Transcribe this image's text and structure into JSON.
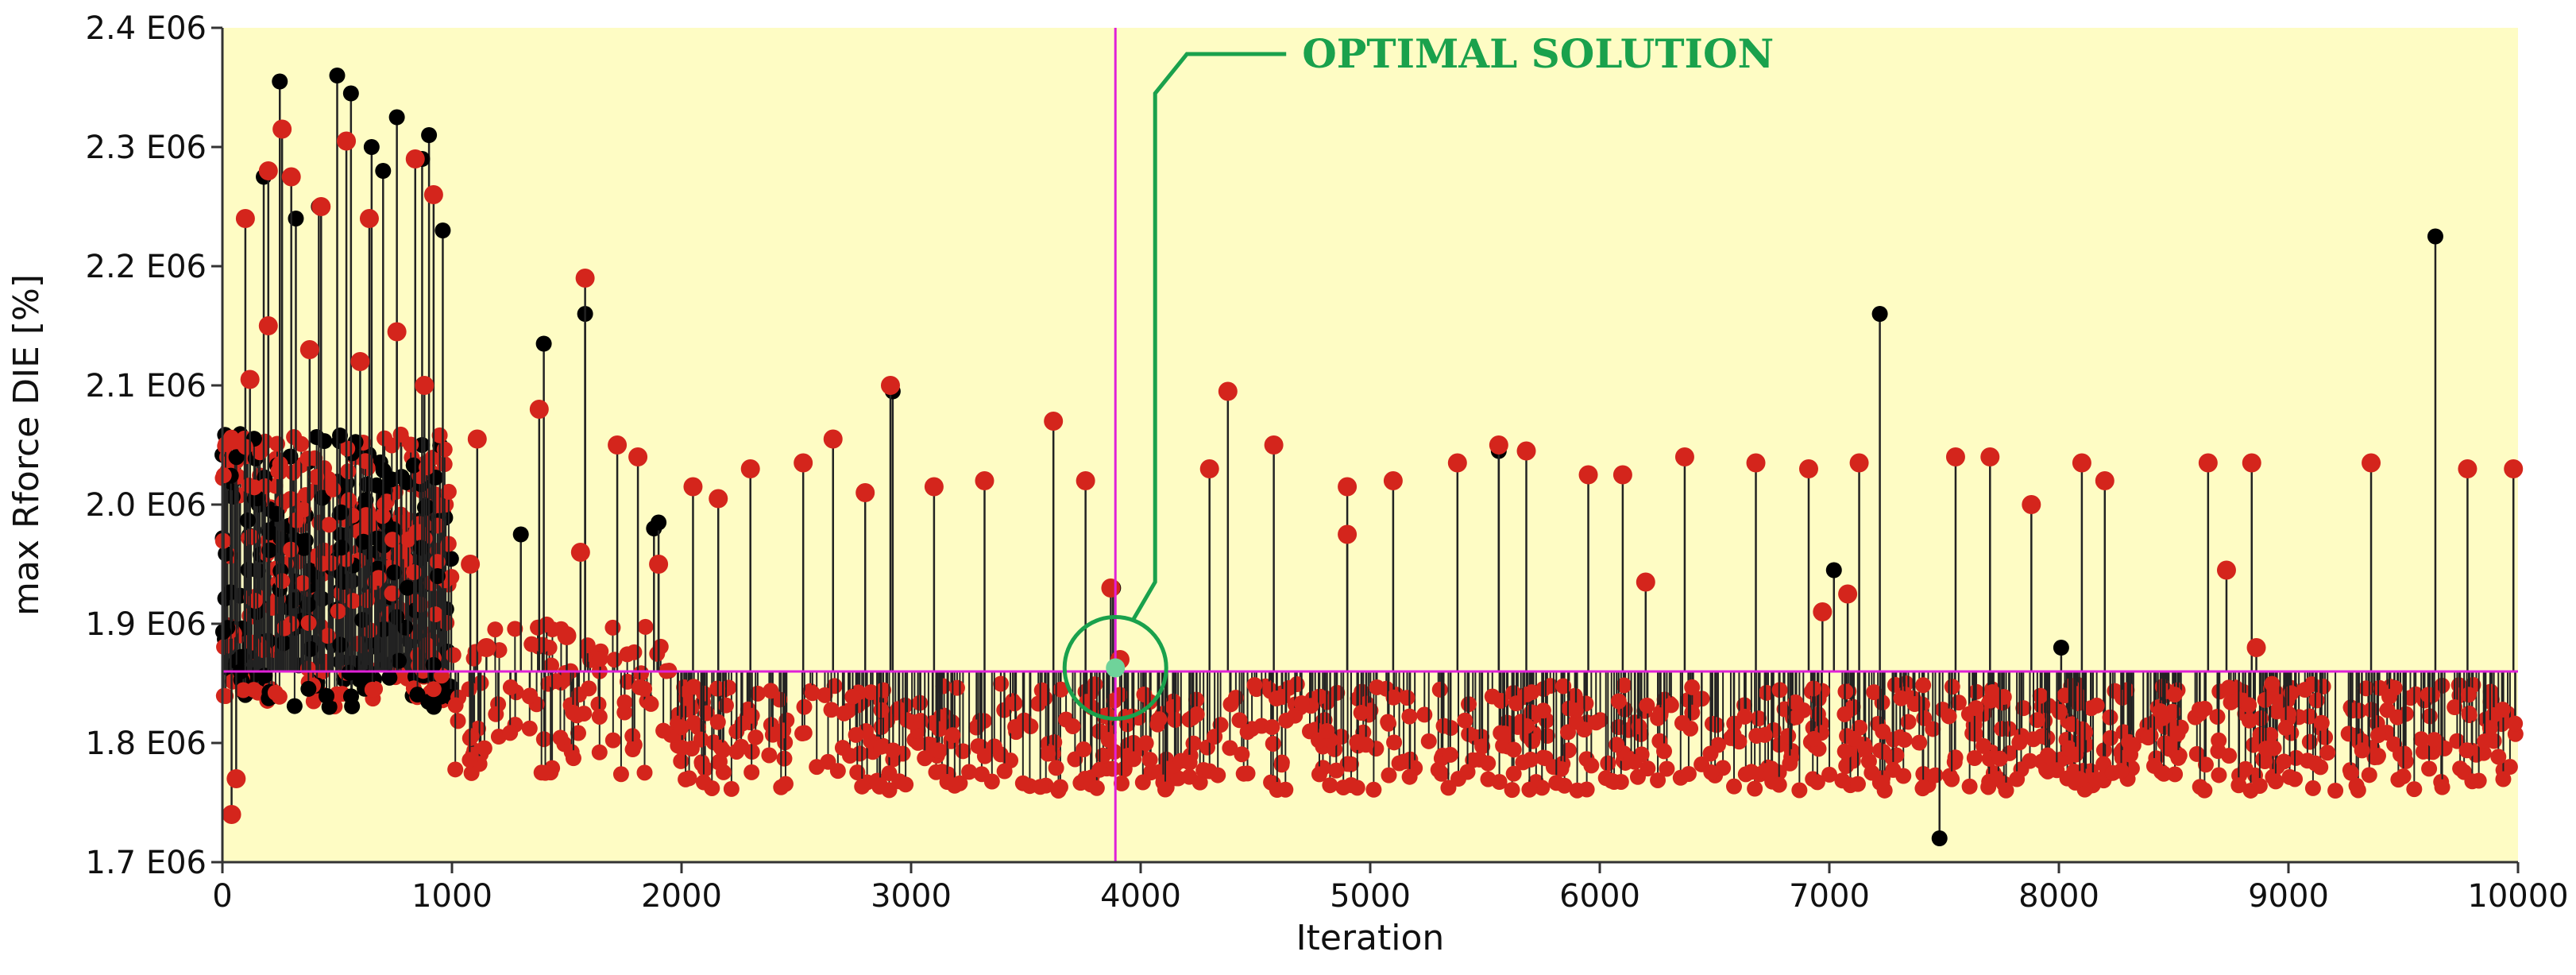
{
  "chart_data": {
    "type": "scatter",
    "title": "",
    "xlabel": "Iteration",
    "ylabel": "max Rforce DIE [%]",
    "xlim": [
      0,
      10000
    ],
    "ylim": [
      1700000,
      2400000
    ],
    "x_ticks": [
      0,
      1000,
      2000,
      3000,
      4000,
      5000,
      6000,
      7000,
      8000,
      9000,
      10000
    ],
    "y_ticks": [
      {
        "value": 1700000,
        "label": "1.7 E06"
      },
      {
        "value": 1800000,
        "label": "1.8 E06"
      },
      {
        "value": 1900000,
        "label": "1.9 E06"
      },
      {
        "value": 2000000,
        "label": "2.0 E06"
      },
      {
        "value": 2100000,
        "label": "2.1 E06"
      },
      {
        "value": 2200000,
        "label": "2.2 E06"
      },
      {
        "value": 2300000,
        "label": "2.3 E06"
      },
      {
        "value": 2400000,
        "label": "2.4 E06"
      }
    ],
    "grid": false,
    "background": "#fefcc4",
    "series": [
      {
        "color": "#000000",
        "points": [
          [
            250,
            2355000
          ],
          [
            500,
            2360000
          ],
          [
            560,
            2345000
          ],
          [
            760,
            2325000
          ],
          [
            900,
            2310000
          ],
          [
            180,
            2275000
          ],
          [
            650,
            2300000
          ],
          [
            870,
            2290000
          ],
          [
            960,
            2230000
          ],
          [
            320,
            2240000
          ],
          [
            700,
            2280000
          ],
          [
            420,
            2250000
          ],
          [
            1580,
            2160000
          ],
          [
            1400,
            2135000
          ],
          [
            1300,
            1975000
          ],
          [
            1880,
            1980000
          ],
          [
            1900,
            1985000
          ],
          [
            2920,
            2095000
          ],
          [
            7220,
            2160000
          ],
          [
            7020,
            1945000
          ],
          [
            9640,
            2225000
          ],
          [
            3880,
            1930000
          ],
          [
            7480,
            1720000
          ],
          [
            5560,
            2045000
          ],
          [
            8010,
            1880000
          ]
        ]
      },
      {
        "color": "#d4251c",
        "points": [
          [
            40,
            1740000
          ],
          [
            60,
            1770000
          ],
          [
            100,
            2240000
          ],
          [
            200,
            2280000
          ],
          [
            260,
            2315000
          ],
          [
            300,
            2275000
          ],
          [
            430,
            2250000
          ],
          [
            540,
            2305000
          ],
          [
            640,
            2240000
          ],
          [
            840,
            2290000
          ],
          [
            920,
            2260000
          ],
          [
            120,
            2105000
          ],
          [
            200,
            2150000
          ],
          [
            380,
            2130000
          ],
          [
            600,
            2120000
          ],
          [
            760,
            2145000
          ],
          [
            880,
            2100000
          ],
          [
            1110,
            2055000
          ],
          [
            1380,
            2080000
          ],
          [
            1580,
            2190000
          ],
          [
            1720,
            2050000
          ],
          [
            1810,
            2040000
          ],
          [
            2050,
            2015000
          ],
          [
            2160,
            2005000
          ],
          [
            2300,
            2030000
          ],
          [
            2530,
            2035000
          ],
          [
            2660,
            2055000
          ],
          [
            2800,
            2010000
          ],
          [
            2910,
            2100000
          ],
          [
            3100,
            2015000
          ],
          [
            3320,
            2020000
          ],
          [
            3620,
            2070000
          ],
          [
            3760,
            2020000
          ],
          [
            3870,
            1930000
          ],
          [
            4300,
            2030000
          ],
          [
            4380,
            2095000
          ],
          [
            4580,
            2050000
          ],
          [
            4900,
            2015000
          ],
          [
            5100,
            2020000
          ],
          [
            5380,
            2035000
          ],
          [
            5560,
            2050000
          ],
          [
            5680,
            2045000
          ],
          [
            5950,
            2025000
          ],
          [
            6100,
            2025000
          ],
          [
            6370,
            2040000
          ],
          [
            6680,
            2035000
          ],
          [
            6910,
            2030000
          ],
          [
            7130,
            2035000
          ],
          [
            7550,
            2040000
          ],
          [
            7700,
            2040000
          ],
          [
            7880,
            2000000
          ],
          [
            8100,
            2035000
          ],
          [
            8200,
            2020000
          ],
          [
            8650,
            2035000
          ],
          [
            8840,
            2035000
          ],
          [
            9360,
            2035000
          ],
          [
            9780,
            2030000
          ],
          [
            9980,
            2030000
          ],
          [
            1080,
            1950000
          ],
          [
            1560,
            1960000
          ],
          [
            1900,
            1950000
          ],
          [
            4900,
            1975000
          ],
          [
            6200,
            1935000
          ],
          [
            6970,
            1910000
          ],
          [
            7080,
            1925000
          ],
          [
            8730,
            1945000
          ],
          [
            8860,
            1880000
          ],
          [
            3910,
            1870000
          ],
          [
            1150,
            1880000
          ],
          [
            1500,
            1890000
          ]
        ]
      }
    ],
    "reference_lines": {
      "vertical_x": 3890,
      "horizontal_y": 1860000,
      "color": "#e020d8"
    },
    "optimal_point": {
      "x": 3890,
      "y": 1863000,
      "color": "#6fd39a"
    },
    "annotation": {
      "text": "OPTIMAL SOLUTION",
      "color": "#1aa14c"
    }
  }
}
